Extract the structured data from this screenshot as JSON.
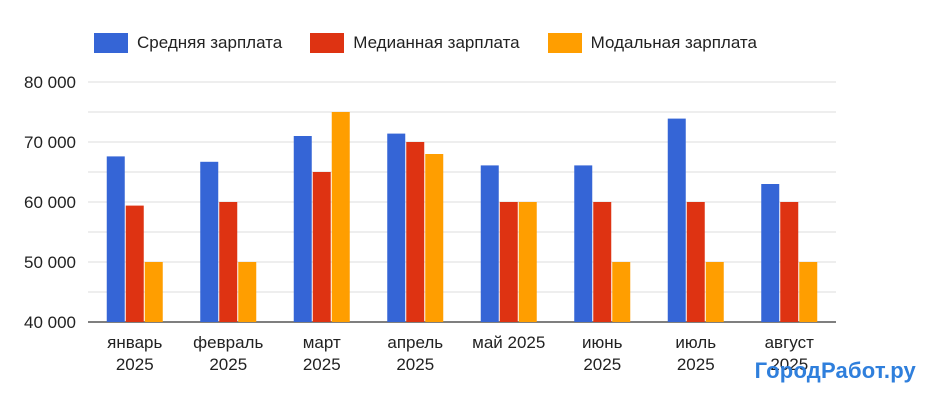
{
  "colors": {
    "avg": "#3565d6",
    "median": "#de3312",
    "mode": "#ff9e00",
    "grid": "#dcdcdc",
    "text": "#222222",
    "watermark": "#2f7fdc"
  },
  "watermark": "ГородРабот.ру",
  "chart_data": {
    "type": "bar",
    "categories": [
      [
        "январь",
        "2025"
      ],
      [
        "февраль",
        "2025"
      ],
      [
        "март",
        "2025"
      ],
      [
        "апрель",
        "2025"
      ],
      [
        "май 2025"
      ],
      [
        "июнь",
        "2025"
      ],
      [
        "июль",
        "2025"
      ],
      [
        "август",
        "2025"
      ]
    ],
    "series": [
      {
        "name": "Средняя зарплата",
        "color": "#3565d6",
        "values": [
          67600,
          66700,
          71000,
          71400,
          66100,
          66100,
          73900,
          63000
        ]
      },
      {
        "name": "Медианная зарплата",
        "color": "#de3312",
        "values": [
          59400,
          60000,
          65000,
          70000,
          60000,
          60000,
          60000,
          60000
        ]
      },
      {
        "name": "Модальная зарплата",
        "color": "#ff9e00",
        "values": [
          50000,
          50000,
          75000,
          68000,
          60000,
          50000,
          50000,
          50000
        ]
      }
    ],
    "ylim": [
      40000,
      80000
    ],
    "yticks": [
      {
        "value": 40000,
        "label": "40 000"
      },
      {
        "value": 50000,
        "label": "50 000"
      },
      {
        "value": 60000,
        "label": "60 000"
      },
      {
        "value": 70000,
        "label": "70 000"
      },
      {
        "value": 80000,
        "label": "80 000"
      }
    ],
    "grid": true,
    "legend": "top-left"
  }
}
